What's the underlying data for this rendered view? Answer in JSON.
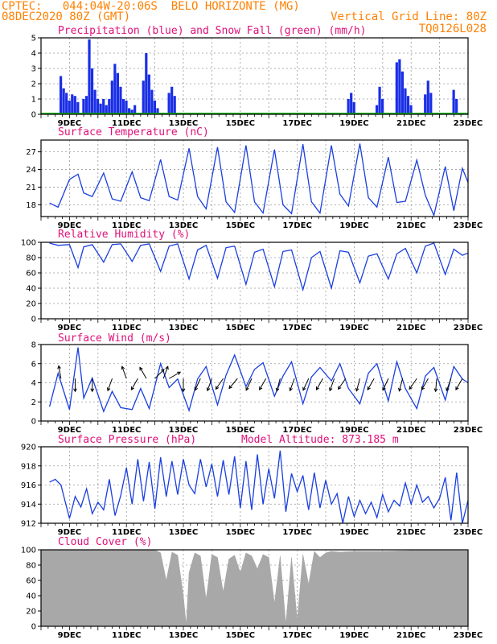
{
  "header": {
    "left_line1": "CPTEC:   044:04W-20:06S  BELO HORIZONTE (MG)",
    "left_line2": "08DEC2020 80Z (GMT)",
    "right_line2": "Vertical Grid Line: 80Z",
    "right_line3": "TQ0126L028"
  },
  "colors": {
    "header": "#ff8000",
    "panel_title": "#e0107a",
    "precip": "#1a2ee6",
    "snow": "#00b000",
    "line": "#1a3fe0",
    "cloud": "#a8a8a8"
  },
  "x_tick_labels": [
    "9DEC",
    "11DEC",
    "13DEC",
    "15DEC",
    "17DEC",
    "19DEC",
    "21DEC",
    "23DEC"
  ],
  "chart_data": [
    {
      "type": "bar",
      "title": "Precipitation (blue) and Snow Fall (green) (mm/h)",
      "ylim": [
        0,
        5
      ],
      "yticks": [
        "0",
        "1",
        "2",
        "3",
        "4",
        "5"
      ],
      "series": [
        {
          "name": "Precipitation",
          "x_days": [
            8.7,
            8.8,
            8.9,
            9.0,
            9.1,
            9.2,
            9.3,
            9.5,
            9.6,
            9.7,
            9.8,
            9.9,
            10.0,
            10.1,
            10.2,
            10.3,
            10.4,
            10.5,
            10.6,
            10.7,
            10.8,
            10.9,
            11.0,
            11.1,
            11.2,
            11.3,
            11.6,
            11.7,
            11.8,
            11.9,
            12.0,
            12.1,
            12.5,
            12.6,
            12.7,
            18.8,
            18.9,
            19.0,
            19.8,
            19.9,
            20.0,
            20.5,
            20.6,
            20.7,
            20.8,
            20.9,
            21.0,
            21.5,
            21.6,
            21.7,
            22.5,
            22.6
          ],
          "values": [
            2.5,
            1.7,
            1.4,
            0.9,
            1.3,
            1.2,
            0.8,
            1.0,
            1.2,
            4.9,
            3.0,
            1.6,
            1.0,
            0.7,
            1.0,
            0.6,
            1.0,
            2.2,
            3.3,
            2.7,
            1.8,
            1.0,
            0.9,
            0.4,
            0.3,
            0.6,
            2.2,
            4.0,
            2.6,
            1.6,
            0.9,
            0.4,
            1.4,
            1.8,
            1.2,
            1.0,
            1.4,
            0.8,
            0.6,
            1.8,
            1.0,
            3.4,
            3.6,
            2.8,
            1.7,
            1.2,
            0.6,
            1.3,
            2.2,
            1.4,
            1.6,
            1.0
          ]
        },
        {
          "name": "Snow Fall",
          "values": [
            0
          ]
        }
      ]
    },
    {
      "type": "line",
      "title": "Surface Temperature (nC)",
      "ylim": [
        16,
        29
      ],
      "yticks": [
        "18",
        "21",
        "24",
        "27"
      ],
      "x_days": [
        8.3,
        8.6,
        9.0,
        9.3,
        9.5,
        9.8,
        10.2,
        10.5,
        10.8,
        11.2,
        11.5,
        11.8,
        12.2,
        12.5,
        12.8,
        13.2,
        13.5,
        13.8,
        14.2,
        14.5,
        14.8,
        15.2,
        15.5,
        15.8,
        16.2,
        16.5,
        16.8,
        17.2,
        17.5,
        17.8,
        18.2,
        18.5,
        18.8,
        19.2,
        19.5,
        19.8,
        20.2,
        20.5,
        20.8,
        21.2,
        21.5,
        21.8,
        22.2,
        22.5,
        22.8,
        23.0
      ],
      "values": [
        18.3,
        17.6,
        22.3,
        23.2,
        20.0,
        19.4,
        23.4,
        19.0,
        18.6,
        23.6,
        19.2,
        18.7,
        25.7,
        19.4,
        18.8,
        27.6,
        19.4,
        17.3,
        27.8,
        18.5,
        16.7,
        28.1,
        18.5,
        16.6,
        27.4,
        18.0,
        16.5,
        28.3,
        18.5,
        16.6,
        28.1,
        19.8,
        17.8,
        28.4,
        19.2,
        17.6,
        26.1,
        18.4,
        18.6,
        25.6,
        19.6,
        16.2,
        24.5,
        17.0,
        24.2,
        21.8
      ]
    },
    {
      "type": "line",
      "title": "Relative Humidity (%)",
      "ylim": [
        0,
        100
      ],
      "yticks": [
        "0",
        "20",
        "40",
        "60",
        "80",
        "100"
      ],
      "x_days": [
        8.3,
        8.6,
        9.0,
        9.3,
        9.5,
        9.8,
        10.2,
        10.5,
        10.8,
        11.2,
        11.5,
        11.8,
        12.2,
        12.5,
        12.8,
        13.2,
        13.5,
        13.8,
        14.2,
        14.5,
        14.8,
        15.2,
        15.5,
        15.8,
        16.2,
        16.5,
        16.8,
        17.2,
        17.5,
        17.8,
        18.2,
        18.5,
        18.8,
        19.2,
        19.5,
        19.8,
        20.2,
        20.5,
        20.8,
        21.2,
        21.5,
        21.8,
        22.2,
        22.5,
        22.8,
        23.0
      ],
      "values": [
        99,
        96,
        97,
        67,
        94,
        97,
        74,
        97,
        98,
        75,
        96,
        98,
        62,
        95,
        98,
        52,
        90,
        96,
        53,
        93,
        95,
        45,
        87,
        91,
        42,
        88,
        90,
        38,
        80,
        88,
        40,
        89,
        87,
        47,
        82,
        85,
        52,
        85,
        92,
        60,
        95,
        99,
        58,
        91,
        83,
        86
      ]
    },
    {
      "type": "line",
      "title": "Surface Wind (m/s)",
      "ylim": [
        0,
        8
      ],
      "yticks": [
        "0",
        "2",
        "4",
        "6",
        "8"
      ],
      "x_days": [
        8.3,
        8.6,
        9.0,
        9.3,
        9.5,
        9.8,
        10.2,
        10.5,
        10.8,
        11.2,
        11.5,
        11.8,
        12.2,
        12.5,
        12.8,
        13.2,
        13.5,
        13.8,
        14.2,
        14.5,
        14.8,
        15.2,
        15.5,
        15.8,
        16.2,
        16.5,
        16.8,
        17.2,
        17.5,
        17.8,
        18.2,
        18.5,
        18.8,
        19.2,
        19.5,
        19.8,
        20.2,
        20.5,
        20.8,
        21.2,
        21.5,
        21.8,
        22.2,
        22.5,
        22.8,
        23.0
      ],
      "values": [
        1.5,
        5.0,
        1.2,
        7.7,
        2.4,
        4.5,
        1.0,
        3.1,
        1.4,
        1.2,
        3.4,
        1.3,
        6.0,
        3.5,
        4.4,
        1.1,
        4.4,
        5.7,
        1.7,
        4.8,
        6.9,
        3.6,
        5.4,
        6.1,
        2.6,
        4.7,
        6.2,
        1.8,
        4.6,
        5.6,
        4.2,
        6.0,
        3.4,
        1.8,
        5.0,
        6.0,
        2.1,
        6.2,
        3.4,
        1.3,
        4.7,
        5.6,
        2.2,
        5.7,
        4.4,
        4.0
      ],
      "arrows": {
        "x_days": [
          8.7,
          9.2,
          9.8,
          10.5,
          11.0,
          11.4,
          11.7,
          12.0,
          12.3,
          12.5,
          13.0,
          13.6,
          14.0,
          14.4,
          14.9,
          15.4,
          15.9,
          16.4,
          16.9,
          17.4,
          17.9,
          18.3,
          18.7,
          19.2,
          19.7,
          20.2,
          20.7,
          21.2,
          21.6,
          21.9,
          22.4,
          22.8
        ],
        "dir_deg": [
          350,
          180,
          180,
          200,
          340,
          210,
          330,
          45,
          20,
          60,
          180,
          205,
          200,
          215,
          220,
          205,
          210,
          195,
          200,
          205,
          210,
          200,
          215,
          195,
          210,
          205,
          195,
          215,
          210,
          185,
          200,
          210
        ]
      }
    },
    {
      "type": "line",
      "title": "Surface Pressure (hPa)",
      "subtitle": "Model Altitude: 873.185 m",
      "ylim": [
        912,
        920
      ],
      "yticks": [
        "912",
        "914",
        "916",
        "918",
        "920"
      ],
      "x_days": [
        8.3,
        8.5,
        8.7,
        9.0,
        9.2,
        9.4,
        9.6,
        9.8,
        10.0,
        10.2,
        10.4,
        10.6,
        10.8,
        11.0,
        11.2,
        11.4,
        11.6,
        11.8,
        12.0,
        12.2,
        12.4,
        12.6,
        12.8,
        13.0,
        13.2,
        13.4,
        13.6,
        13.8,
        14.0,
        14.2,
        14.4,
        14.6,
        14.8,
        15.0,
        15.2,
        15.4,
        15.6,
        15.8,
        16.0,
        16.2,
        16.4,
        16.6,
        16.8,
        17.0,
        17.2,
        17.4,
        17.6,
        17.8,
        18.0,
        18.2,
        18.4,
        18.6,
        18.8,
        19.0,
        19.2,
        19.4,
        19.6,
        19.8,
        20.0,
        20.2,
        20.4,
        20.6,
        20.8,
        21.0,
        21.2,
        21.4,
        21.6,
        21.8,
        22.0,
        22.2,
        22.4,
        22.6,
        22.8,
        23.0
      ],
      "values": [
        916.3,
        916.6,
        916.0,
        912.5,
        914.8,
        913.7,
        915.6,
        913.0,
        914.2,
        913.4,
        916.6,
        912.8,
        914.9,
        917.8,
        914.0,
        918.7,
        914.3,
        918.4,
        913.5,
        918.9,
        914.8,
        918.5,
        915.0,
        918.7,
        916.0,
        915.1,
        918.7,
        915.8,
        918.2,
        914.8,
        918.6,
        915.0,
        919.0,
        913.6,
        918.5,
        913.4,
        919.2,
        914.0,
        917.7,
        914.6,
        919.6,
        913.2,
        917.2,
        915.3,
        917.0,
        913.4,
        917.3,
        913.6,
        916.5,
        914.0,
        915.1,
        911.8,
        914.8,
        912.7,
        914.4,
        913.0,
        914.2,
        912.6,
        915.0,
        913.2,
        914.4,
        913.8,
        916.2,
        914.0,
        916.0,
        914.2,
        914.8,
        913.6,
        914.6,
        916.8,
        912.3,
        917.3,
        911.8,
        914.4
      ]
    },
    {
      "type": "area",
      "title": "Cloud Cover (%)",
      "ylim": [
        0,
        100
      ],
      "yticks": [
        "0",
        "20",
        "40",
        "60",
        "80",
        "100"
      ],
      "x_days": [
        8.0,
        12.0,
        12.2,
        12.4,
        12.6,
        12.8,
        13.0,
        13.1,
        13.2,
        13.4,
        13.6,
        13.8,
        14.0,
        14.2,
        14.4,
        14.6,
        14.8,
        15.0,
        15.2,
        15.4,
        15.6,
        15.8,
        16.0,
        16.2,
        16.4,
        16.6,
        16.8,
        17.0,
        17.2,
        17.4,
        17.6,
        17.8,
        18.0,
        18.2,
        18.5,
        19.0,
        20.0,
        21.0,
        22.0,
        23.0
      ],
      "values": [
        100,
        100,
        96,
        60,
        97,
        93,
        40,
        2,
        70,
        96,
        92,
        35,
        94,
        90,
        45,
        88,
        93,
        70,
        96,
        92,
        75,
        94,
        90,
        30,
        92,
        3,
        90,
        8,
        94,
        55,
        98,
        90,
        96,
        98,
        97,
        98,
        98,
        99,
        99,
        99
      ]
    }
  ]
}
